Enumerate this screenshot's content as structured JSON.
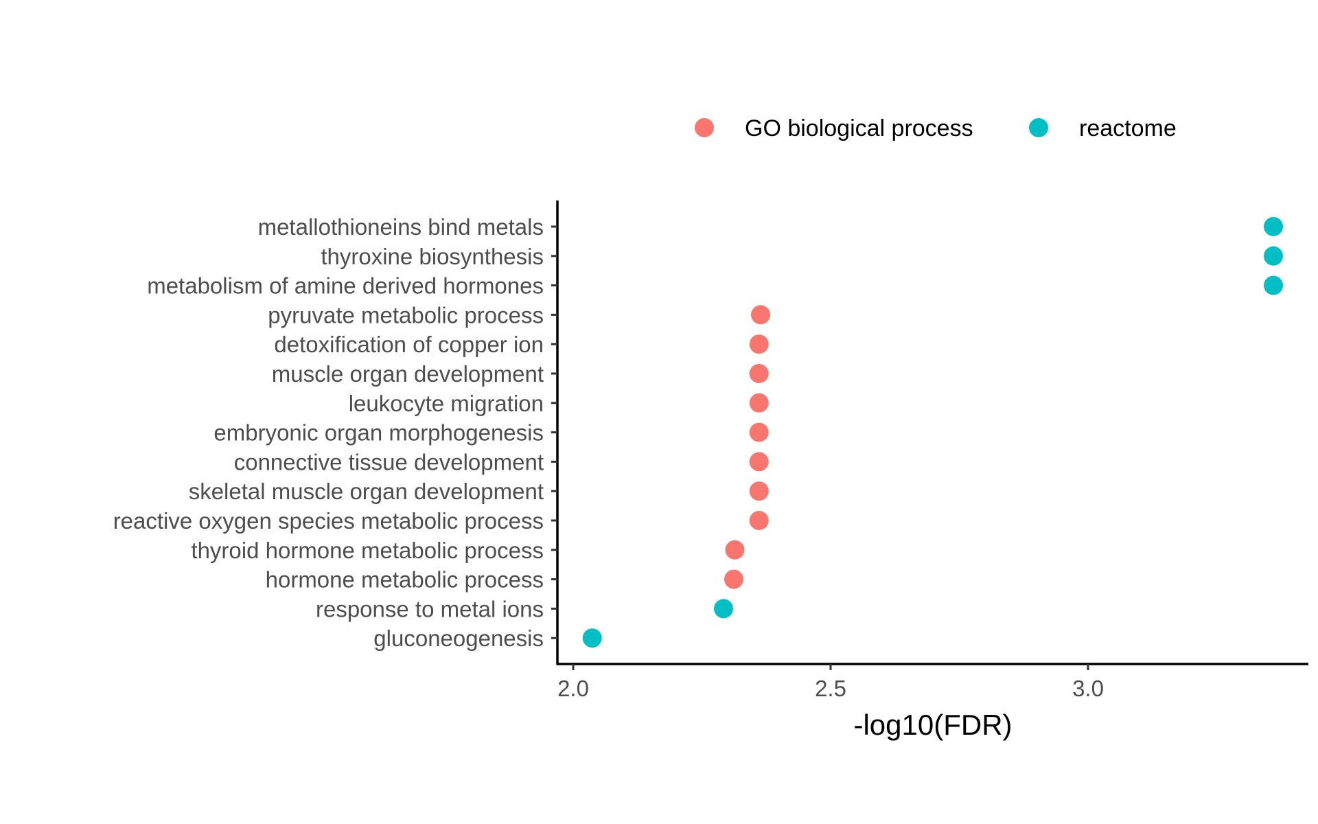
{
  "chart_data": {
    "type": "scatter",
    "title": "",
    "xlabel": "-log10(FDR)",
    "ylabel": "",
    "xlim": [
      1.97,
      3.42
    ],
    "x_ticks": [
      2.0,
      2.5,
      3.0
    ],
    "x_tick_labels": [
      "2.0",
      "2.5",
      "3.0"
    ],
    "grid": false,
    "legend_position": "top",
    "categories": [
      "metallothioneins bind metals",
      "thyroxine biosynthesis",
      "metabolism of amine derived hormones",
      "pyruvate metabolic process",
      "detoxification of copper ion",
      "muscle organ development",
      "leukocyte migration",
      "embryonic organ morphogenesis",
      "connective tissue development",
      "skeletal muscle organ development",
      "reactive oxygen species metabolic process",
      "thyroid hormone metabolic process",
      "hormone metabolic process",
      "response to metal ions",
      "gluconeogenesis"
    ],
    "series": [
      {
        "name": "GO biological process",
        "color": "#F8766D",
        "points": [
          {
            "category": "pyruvate metabolic process",
            "x": 2.364
          },
          {
            "category": "detoxification of copper ion",
            "x": 2.361
          },
          {
            "category": "muscle organ development",
            "x": 2.361
          },
          {
            "category": "leukocyte migration",
            "x": 2.361
          },
          {
            "category": "embryonic organ morphogenesis",
            "x": 2.361
          },
          {
            "category": "connective tissue development",
            "x": 2.361
          },
          {
            "category": "skeletal muscle organ development",
            "x": 2.361
          },
          {
            "category": "reactive oxygen species metabolic process",
            "x": 2.361
          },
          {
            "category": "thyroid hormone metabolic process",
            "x": 2.314
          },
          {
            "category": "hormone metabolic process",
            "x": 2.312
          }
        ]
      },
      {
        "name": "reactome",
        "color": "#00BFC4",
        "points": [
          {
            "category": "metallothioneins bind metals",
            "x": 3.36
          },
          {
            "category": "thyroxine biosynthesis",
            "x": 3.36
          },
          {
            "category": "metabolism of amine derived hormones",
            "x": 3.36
          },
          {
            "category": "response to metal ions",
            "x": 2.292
          },
          {
            "category": "gluconeogenesis",
            "x": 2.037
          }
        ]
      }
    ]
  }
}
